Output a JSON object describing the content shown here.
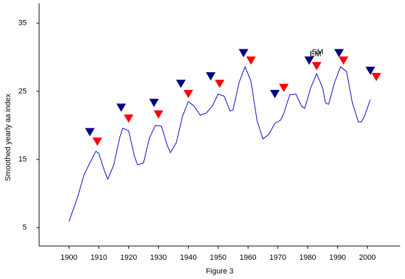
{
  "chart_data": {
    "type": "line",
    "caption": "Figure 3",
    "y_label": "Smoothed yearly aa index",
    "xlim": [
      1890,
      2011
    ],
    "ylim": [
      2.3,
      37.9
    ],
    "xticks": [
      1900,
      1910,
      1920,
      1930,
      1940,
      1950,
      1960,
      1970,
      1980,
      1990,
      2000
    ],
    "yticks": [
      5,
      15,
      25,
      35
    ],
    "x": [
      1900,
      1903,
      1905,
      1907,
      1909,
      1910,
      1912,
      1913,
      1915,
      1917,
      1918,
      1920,
      1922,
      1923,
      1925,
      1927,
      1929,
      1931,
      1933,
      1934,
      1936,
      1938,
      1940,
      1942,
      1944,
      1946,
      1948,
      1950,
      1952,
      1954,
      1955,
      1957,
      1959,
      1961,
      1963,
      1965,
      1967,
      1969,
      1971,
      1972,
      1974,
      1976,
      1978,
      1979,
      1981,
      1983,
      1985,
      1986,
      1987,
      1989,
      1991,
      1993,
      1995,
      1997,
      1998,
      1999,
      2001
    ],
    "series": [
      {
        "color": "#0000cc",
        "values": [
          5.9,
          9.6,
          12.7,
          14.5,
          16.2,
          15.9,
          13.2,
          12.1,
          14.2,
          18.2,
          19.6,
          19.2,
          15.4,
          14.2,
          14.5,
          18.2,
          20.0,
          19.9,
          17.0,
          16.0,
          17.5,
          21.3,
          23.5,
          22.8,
          21.5,
          21.8,
          22.8,
          24.6,
          24.3,
          22.1,
          22.3,
          26.3,
          28.6,
          26.5,
          20.8,
          18.0,
          18.7,
          20.3,
          20.8,
          21.8,
          24.5,
          24.6,
          22.8,
          22.5,
          25.5,
          27.6,
          25.5,
          23.3,
          23.1,
          26.3,
          28.6,
          27.9,
          23.3,
          20.5,
          20.5,
          21.3,
          23.8
        ]
      },
      {
        "name": "SM",
        "color": "#000080",
        "marker": "triangle-down",
        "x": [
          1907,
          1917.5,
          1928.5,
          1937.5,
          1947.5,
          1958.5,
          1969,
          1980.5,
          1990.5,
          2001
        ],
        "values": [
          19.0,
          22.6,
          23.3,
          26.1,
          27.2,
          30.6,
          24.6,
          29.5,
          30.6,
          28.0
        ]
      },
      {
        "name": "EM",
        "color": "#ff0000",
        "marker": "triangle-down",
        "x": [
          1909.5,
          1920,
          1930,
          1940,
          1950.5,
          1961,
          1972,
          1983,
          1992,
          2003
        ],
        "values": [
          17.6,
          21.0,
          21.6,
          24.6,
          26.1,
          29.5,
          25.5,
          28.7,
          29.5,
          27.1
        ]
      }
    ]
  }
}
